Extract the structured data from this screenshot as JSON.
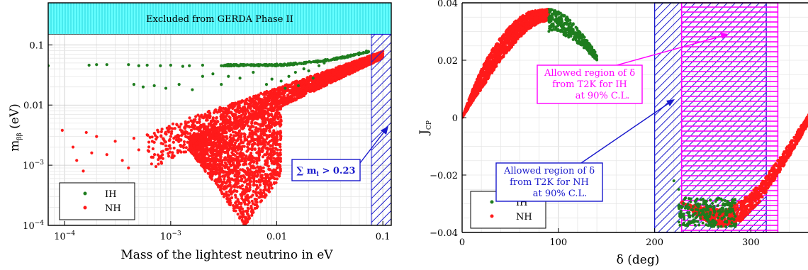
{
  "chart_data": [
    {
      "type": "scatter",
      "xscale": "log",
      "yscale": "log",
      "xlabel": "Mass of the lightest neutrino in eV",
      "ylabel_main": "m",
      "ylabel_sub": "ββ",
      "ylabel_unit": " (eV)",
      "xlim": [
        7e-05,
        0.12
      ],
      "ylim": [
        0.0001,
        0.5
      ],
      "x_ticks": [
        {
          "value": 0.0001,
          "base": "10",
          "exp": "−4"
        },
        {
          "value": 0.001,
          "base": "10",
          "exp": "−3"
        },
        {
          "value": 0.01,
          "label": "0.01"
        },
        {
          "value": 0.1,
          "label": "0.1"
        }
      ],
      "y_ticks": [
        {
          "value": 0.1,
          "label": "0.1"
        },
        {
          "value": 0.01,
          "label": "0.01"
        },
        {
          "value": 0.001,
          "base": "10",
          "exp": "−3"
        },
        {
          "value": 0.0001,
          "base": "10",
          "exp": "−4"
        }
      ],
      "excluded_label": "Excluded from  GERDA Phase II",
      "excluded_ymin": 0.15,
      "hatched_xmin": 0.078,
      "sum_label_pre": "∑ m",
      "sum_label_sub": "i",
      "sum_label_post": " > 0.23",
      "legend": [
        {
          "label": "IH",
          "color": "#1e7d1e"
        },
        {
          "label": "NH",
          "color": "#ff1a1a"
        }
      ],
      "legend_position": "bottom-left",
      "grid": true,
      "series": [
        {
          "name": "IH",
          "color": "#1e7d1e",
          "points": [
            [
              7e-05,
              0.045
            ],
            [
              0.00017,
              0.046
            ],
            [
              0.0002,
              0.047
            ],
            [
              0.00025,
              0.047
            ],
            [
              0.0004,
              0.047
            ],
            [
              0.0005,
              0.045
            ],
            [
              0.0006,
              0.046
            ],
            [
              0.0008,
              0.045
            ],
            [
              0.001,
              0.046
            ],
            [
              0.0013,
              0.044
            ],
            [
              0.0015,
              0.045
            ],
            [
              0.002,
              0.046
            ],
            [
              0.003,
              0.045
            ],
            [
              0.004,
              0.047
            ],
            [
              0.005,
              0.046
            ],
            [
              0.007,
              0.047
            ],
            [
              0.01,
              0.048
            ],
            [
              0.015,
              0.05
            ],
            [
              0.02,
              0.052
            ],
            [
              0.03,
              0.057
            ],
            [
              0.04,
              0.062
            ],
            [
              0.05,
              0.068
            ],
            [
              0.06,
              0.074
            ],
            [
              0.07,
              0.079
            ],
            [
              0.00045,
              0.022
            ],
            [
              0.00055,
              0.02
            ],
            [
              0.0007,
              0.021
            ],
            [
              0.0009,
              0.019
            ],
            [
              0.0012,
              0.022
            ],
            [
              0.0016,
              0.018
            ],
            [
              0.002,
              0.03
            ],
            [
              0.0025,
              0.033
            ],
            [
              0.003,
              0.022
            ],
            [
              0.0035,
              0.03
            ],
            [
              0.0045,
              0.028
            ],
            [
              0.006,
              0.035
            ],
            [
              0.008,
              0.022
            ],
            [
              0.009,
              0.027
            ],
            [
              0.011,
              0.025
            ],
            [
              0.013,
              0.03
            ],
            [
              0.015,
              0.035
            ],
            [
              0.018,
              0.04
            ],
            [
              0.02,
              0.037
            ],
            [
              0.025,
              0.045
            ],
            [
              0.028,
              0.05
            ],
            [
              0.012,
              0.019
            ],
            [
              0.016,
              0.021
            ],
            [
              0.022,
              0.028
            ]
          ]
        },
        {
          "name": "NH",
          "color": "#ff1a1a",
          "points": [
            [
              9.5e-05,
              0.0038
            ],
            [
              0.00013,
              0.0012
            ],
            [
              0.00015,
              0.0008
            ],
            [
              0.00016,
              0.0035
            ],
            [
              0.0002,
              0.003
            ],
            [
              0.00025,
              0.0015
            ],
            [
              0.0003,
              0.0025
            ],
            [
              0.00035,
              0.0012
            ],
            [
              0.0004,
              0.0009
            ],
            [
              0.00045,
              0.0028
            ],
            [
              0.0005,
              0.0018
            ],
            [
              0.0006,
              0.0032
            ],
            [
              0.0007,
              0.0024
            ],
            [
              0.0008,
              0.0014
            ],
            [
              0.0009,
              0.0021
            ],
            [
              0.001,
              0.003
            ],
            [
              0.00012,
              0.002
            ],
            [
              0.00018,
              0.0016
            ]
          ],
          "bands": [
            {
              "x": [
                0.0006,
                0.1
              ],
              "y_low": [
                0.0008,
                0.06
              ],
              "y_high": [
                0.0035,
                0.08
              ]
            },
            {
              "x": [
                0.002,
                0.009
              ],
              "y_low": [
                0.00012,
                0.00012
              ],
              "y_high": [
                0.005,
                0.015
              ]
            }
          ]
        }
      ]
    },
    {
      "type": "scatter",
      "xlabel": "δ (deg)",
      "ylabel_main": "J",
      "ylabel_sub": "CP",
      "xlim": [
        0,
        360
      ],
      "ylim": [
        -0.04,
        0.04
      ],
      "x_ticks": [
        0,
        100,
        200,
        300
      ],
      "y_ticks": [
        {
          "value": 0.04,
          "label": "0.04"
        },
        {
          "value": 0.02,
          "label": "0.02"
        },
        {
          "value": 0,
          "label": "0"
        },
        {
          "value": -0.02,
          "label": "−0.02"
        },
        {
          "value": -0.04,
          "label": "−0.04"
        }
      ],
      "nh_region": [
        200,
        316
      ],
      "ih_region": [
        228,
        328
      ],
      "ih_annotation": [
        "Allowed region of δ",
        "from T2K for IH",
        "at 90% C.L."
      ],
      "nh_annotation": [
        "Allowed region of δ",
        "from T2K for NH",
        "at 90% C.L."
      ],
      "ih_color": "#ff00ff",
      "nh_color": "#1a1acc",
      "legend": [
        {
          "label": "IH",
          "color": "#1e7d1e"
        },
        {
          "label": "NH",
          "color": "#ff1a1a"
        }
      ],
      "legend_position": "bottom-left",
      "grid": true,
      "series": [
        {
          "name": "NH",
          "color": "#ff1a1a",
          "curve_left": {
            "x": [
              0,
              10,
              20,
              30,
              40,
              50,
              60,
              70,
              80,
              90
            ],
            "y_low": [
              0,
              0.005,
              0.01,
              0.015,
              0.02,
              0.024,
              0.028,
              0.031,
              0.033,
              0.034
            ],
            "y_high": [
              0,
              0.009,
              0.017,
              0.023,
              0.028,
              0.032,
              0.035,
              0.037,
              0.0375,
              0.038
            ]
          },
          "curve_right": {
            "x": [
              228,
              250,
              270,
              290,
              310,
              330,
              350,
              360
            ],
            "y_low": [
              -0.029,
              -0.036,
              -0.038,
              -0.036,
              -0.029,
              -0.019,
              -0.008,
              -0.002
            ],
            "y_high": [
              -0.03,
              -0.031,
              -0.032,
              -0.029,
              -0.023,
              -0.014,
              -0.004,
              0.001
            ]
          }
        },
        {
          "name": "IH",
          "color": "#1e7d1e",
          "curve_left": {
            "x": [
              90,
              100,
              110,
              120,
              130,
              140
            ],
            "y_low": [
              0.03,
              0.03,
              0.028,
              0.026,
              0.023,
              0.02
            ],
            "y_high": [
              0.038,
              0.037,
              0.035,
              0.031,
              0.027,
              0.022
            ]
          },
          "points": [
            [
              220,
              -0.022
            ],
            [
              225,
              -0.025
            ],
            [
              232,
              -0.028
            ],
            [
              240,
              -0.031
            ],
            [
              248,
              -0.034
            ],
            [
              255,
              -0.035
            ],
            [
              262,
              -0.036
            ],
            [
              270,
              -0.035
            ],
            [
              275,
              -0.034
            ],
            [
              245,
              -0.03
            ],
            [
              258,
              -0.033
            ],
            [
              266,
              -0.038
            ],
            [
              280,
              -0.032
            ]
          ]
        }
      ]
    }
  ]
}
